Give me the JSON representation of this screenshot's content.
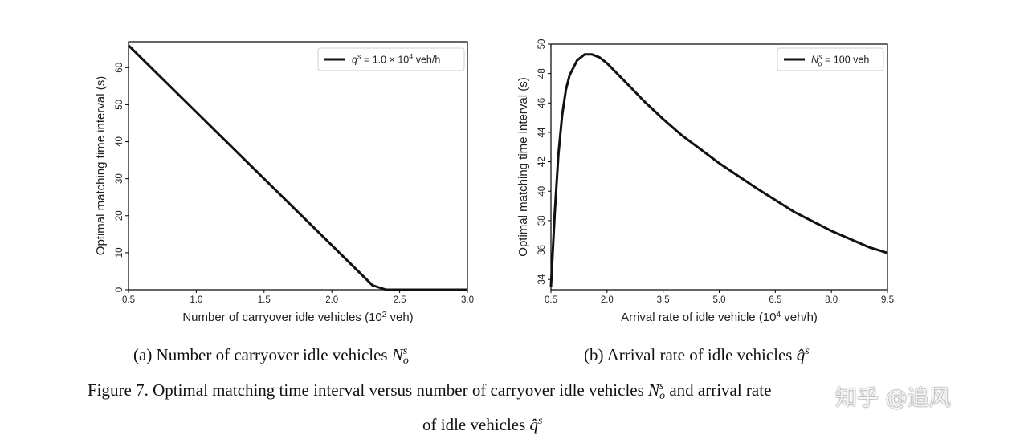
{
  "panels": [
    {
      "ylabel": "Optimal matching time interval (s)",
      "xlabel": "Number of carryover idle vehicles (10",
      "xlabel_sup": "2",
      "xlabel_tail": " veh)",
      "legend": {
        "pre": "q",
        "pre_sup": "s",
        "mid": " = 1.0 × 10",
        "mid_sup": "4",
        "post": " veh/h"
      }
    },
    {
      "ylabel": "Optimal matching time interval (s)",
      "xlabel": "Arrival rate of idle vehicle (10",
      "xlabel_sup": "4",
      "xlabel_tail": " veh/h)",
      "legend": {
        "pre": "N",
        "pre_sup": "s",
        "pre_sub": "o",
        "mid": " = 100 veh",
        "mid_sup": "",
        "post": ""
      }
    }
  ],
  "chart_data": [
    {
      "type": "line",
      "xlim": [
        0.5,
        3.0
      ],
      "ylim": [
        0,
        67
      ],
      "xticks": [
        "0.5",
        "1.0",
        "1.5",
        "2.0",
        "2.5",
        "3.0"
      ],
      "yticks": [
        "0",
        "10",
        "20",
        "30",
        "40",
        "50",
        "60"
      ],
      "x": [
        0.5,
        2.3,
        2.4,
        3.0
      ],
      "y": [
        66,
        1.2,
        0,
        0
      ],
      "grid": false,
      "legend_position": "top-right"
    },
    {
      "type": "line",
      "xlim": [
        0.5,
        9.5
      ],
      "ylim": [
        33.3,
        50
      ],
      "xticks": [
        "0.5",
        "2.0",
        "3.5",
        "5.0",
        "6.5",
        "8.0",
        "9.5"
      ],
      "yticks": [
        "34",
        "36",
        "38",
        "40",
        "42",
        "44",
        "46",
        "48",
        "50"
      ],
      "x": [
        0.5,
        0.6,
        0.7,
        0.8,
        0.9,
        1.0,
        1.2,
        1.4,
        1.6,
        1.8,
        2.0,
        2.5,
        3.0,
        3.5,
        4.0,
        5.0,
        6.0,
        7.0,
        8.0,
        9.0,
        9.5
      ],
      "y": [
        33.5,
        38.5,
        42.5,
        45.2,
        46.9,
        47.9,
        48.9,
        49.3,
        49.3,
        49.1,
        48.7,
        47.4,
        46.1,
        44.9,
        43.8,
        41.9,
        40.2,
        38.6,
        37.3,
        36.2,
        35.8
      ],
      "grid": false,
      "legend_position": "top-right"
    }
  ],
  "subcaptions": {
    "a": {
      "text": "(a) Number of carryover idle vehicles ",
      "sym": "N",
      "sup": "s",
      "sub": "o"
    },
    "b": {
      "text": "(b) Arrival rate of idle vehicles ",
      "sym": "q̂",
      "sup": "s"
    }
  },
  "figure_caption": {
    "line1": "Figure 7. Optimal matching time interval versus number of carryover idle vehicles ",
    "line1_sym": "N",
    "line1_sup": "s",
    "line1_sub": "o",
    "line1_tail": " and arrival rate",
    "line2": "of idle vehicles ",
    "line2_sym": "q̂",
    "line2_sup": "s"
  },
  "watermark": "知乎 @追风"
}
